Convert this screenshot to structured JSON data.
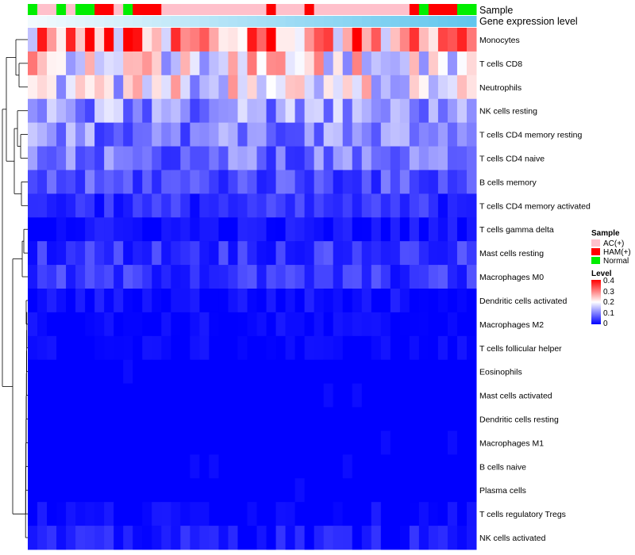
{
  "chart_data": {
    "type": "heatmap",
    "annotation_labels": {
      "sample": "Sample",
      "gene": "Gene expression level"
    },
    "rows": [
      "Monocytes",
      "T cells CD8",
      "Neutrophils",
      "NK cells resting",
      "T cells CD4 memory resting",
      "T cells CD4 naive",
      "B cells memory",
      "T cells CD4 memory activated",
      "T cells gamma delta",
      "Mast cells resting",
      "Macrophages M0",
      "Dendritic cells activated",
      "Macrophages M2",
      "T cells follicular helper",
      "Eosinophils",
      "Mast cells activated",
      "Dendritic cells resting",
      "Macrophages M1",
      "B cells naive",
      "Plasma cells",
      "T cells regulatory  Tregs",
      "NK cells activated"
    ],
    "sample_groups": [
      "N",
      "A",
      "A",
      "N",
      "A",
      "N",
      "N",
      "H",
      "H",
      "A",
      "N",
      "H",
      "H",
      "H",
      "A",
      "A",
      "A",
      "A",
      "A",
      "A",
      "A",
      "A",
      "A",
      "A",
      "A",
      "H",
      "A",
      "A",
      "A",
      "H",
      "A",
      "A",
      "A",
      "A",
      "A",
      "A",
      "A",
      "A",
      "A",
      "A",
      "H",
      "N",
      "H",
      "H",
      "H",
      "N",
      "N"
    ],
    "gene_expression_gradient": [
      "#f2fafe",
      "#62c6ee"
    ],
    "legend": {
      "sample": {
        "title": "Sample",
        "items": [
          {
            "label": "AC(+)",
            "color": "#ffc0cb"
          },
          {
            "label": "HAM(+)",
            "color": "#ff0000"
          },
          {
            "label": "Normal",
            "color": "#00ee00"
          }
        ]
      },
      "level": {
        "title": "Level",
        "ticks": [
          "0.4",
          "0.3",
          "0.2",
          "0.1",
          "0"
        ],
        "colors": {
          "low": "#0000ff",
          "mid": "#ffffff",
          "high": "#ff0000"
        },
        "range": [
          0,
          0.4
        ]
      }
    },
    "row_means": [
      0.3,
      0.21,
      0.19,
      0.115,
      0.1,
      0.085,
      0.06,
      0.035,
      0.012,
      0.04,
      0.04,
      0.01,
      0.004,
      0.002,
      0.0,
      0.0,
      0.0,
      0.0,
      0.0,
      0.0,
      0.006,
      0.02
    ]
  }
}
